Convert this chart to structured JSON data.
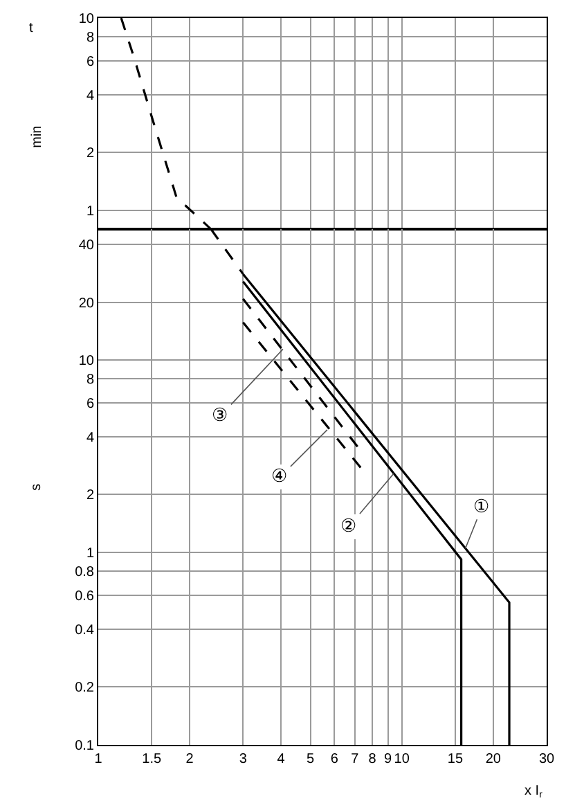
{
  "chart_data": [
    {
      "type": "line",
      "ylabel": "min",
      "series": [
        {
          "color": "#000000",
          "line_style": "dashed",
          "x": [
            1.19,
            1.31,
            1.5,
            1.81,
            2.35
          ],
          "values": [
            10,
            6.27,
            3.07,
            1.17,
            0.8
          ]
        }
      ],
      "annotations": [
        "t"
      ],
      "xlim": [
        1,
        30
      ],
      "xticks": [
        1,
        1.5,
        2,
        3,
        4,
        5,
        6,
        7,
        8,
        9,
        10,
        15,
        20,
        30
      ],
      "ylim": [
        0.8,
        10
      ],
      "yticks": [
        1,
        2,
        4,
        6,
        8,
        10
      ],
      "tick_labels": "y",
      "log": "xy",
      "grid": true,
      "marker": "none"
    },
    {
      "type": "line",
      "xlabel": "x I$_{r}$",
      "ylabel": "s",
      "series": [
        {
          "color": "#000000",
          "line_style": "dashed",
          "x": [
            2.35,
            3
          ],
          "values": [
            48,
            28
          ]
        },
        {
          "color": "#000000",
          "line_style": "solid",
          "x": [
            3,
            22.6,
            22.6
          ],
          "values": [
            28,
            0.55,
            0.1
          ]
        },
        {
          "color": "#000000",
          "line_style": "solid",
          "x": [
            3,
            15.7,
            15.7
          ],
          "values": [
            25.6,
            0.92,
            0.1
          ]
        },
        {
          "color": "#000000",
          "line_style": "dashed",
          "x": [
            3,
            7.3
          ],
          "values": [
            20.8,
            3.4
          ]
        },
        {
          "color": "#000000",
          "line_style": "dashed",
          "x": [
            3,
            7.4
          ],
          "values": [
            15.7,
            2.7
          ]
        }
      ],
      "annotations": [
        {
          "text": "①",
          "x": 16.2,
          "y": 1.05
        },
        {
          "text": "②",
          "x": 9.4,
          "y": 2.57
        },
        {
          "text": "③",
          "x": 4.06,
          "y": 11.4
        },
        {
          "text": "④",
          "x": 5.68,
          "y": 4.34
        }
      ],
      "xlim": [
        1,
        30
      ],
      "xticks": [
        1,
        1.5,
        2,
        3,
        4,
        5,
        6,
        7,
        8,
        9,
        10,
        15,
        20,
        30
      ],
      "ylim": [
        0.1,
        48
      ],
      "yticks": [
        0.1,
        0.2,
        0.4,
        0.6,
        0.8,
        1,
        2,
        4,
        6,
        8,
        10,
        20,
        40
      ],
      "log": "xy",
      "grid": true,
      "marker": "none"
    }
  ]
}
